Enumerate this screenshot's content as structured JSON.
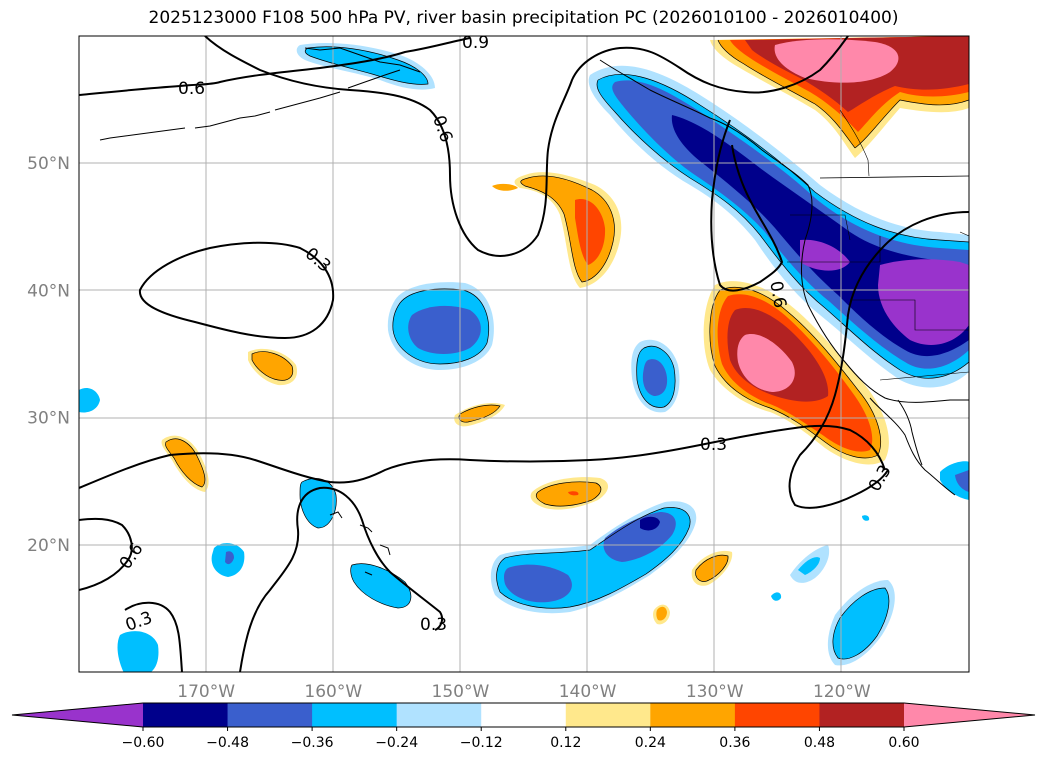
{
  "title": "2025123000 F108 500 hPa PV, river basin precipitation PC (2026010100 - 2026010400)",
  "lat_labels": [
    {
      "text": "50°N",
      "lat": 50
    },
    {
      "text": "40°N",
      "lat": 40
    },
    {
      "text": "30°N",
      "lat": 30
    },
    {
      "text": "20°N",
      "lat": 20
    }
  ],
  "lon_labels": [
    {
      "text": "170°W",
      "lon": -170
    },
    {
      "text": "160°W",
      "lon": -160
    },
    {
      "text": "150°W",
      "lon": -150
    },
    {
      "text": "140°W",
      "lon": -140
    },
    {
      "text": "130°W",
      "lon": -130
    },
    {
      "text": "120°W",
      "lon": -120
    }
  ],
  "map_extent": {
    "lon_min": -180,
    "lon_max": -110,
    "lat_min": 10,
    "lat_max": 60
  },
  "contour_labels": [
    "0.9",
    "0.6",
    "0.6",
    "0.3",
    "0.6",
    "0.3",
    "0.3",
    "0.6",
    "0.3",
    "0.3"
  ],
  "colorbar": {
    "colors": [
      "#9933cc",
      "#00008b",
      "#3a5fcd",
      "#00bfff",
      "#b0e2ff",
      "#ffffff",
      "#ffe88c",
      "#ffa500",
      "#ff4500",
      "#b22222",
      "#ff88aa"
    ],
    "tick_labels": [
      "−0.60",
      "−0.48",
      "−0.36",
      "−0.24",
      "−0.12",
      "0.12",
      "0.24",
      "0.36",
      "0.48",
      "0.60"
    ]
  },
  "colors": {
    "purple": "#9933cc",
    "navy": "#00008b",
    "royal": "#3a5fcd",
    "sky": "#00bfff",
    "lightsky": "#b0e2ff",
    "yellow": "#ffe88c",
    "orange": "#ffa500",
    "redorange": "#ff4500",
    "firebrick": "#b22222",
    "pink": "#ff88aa"
  }
}
